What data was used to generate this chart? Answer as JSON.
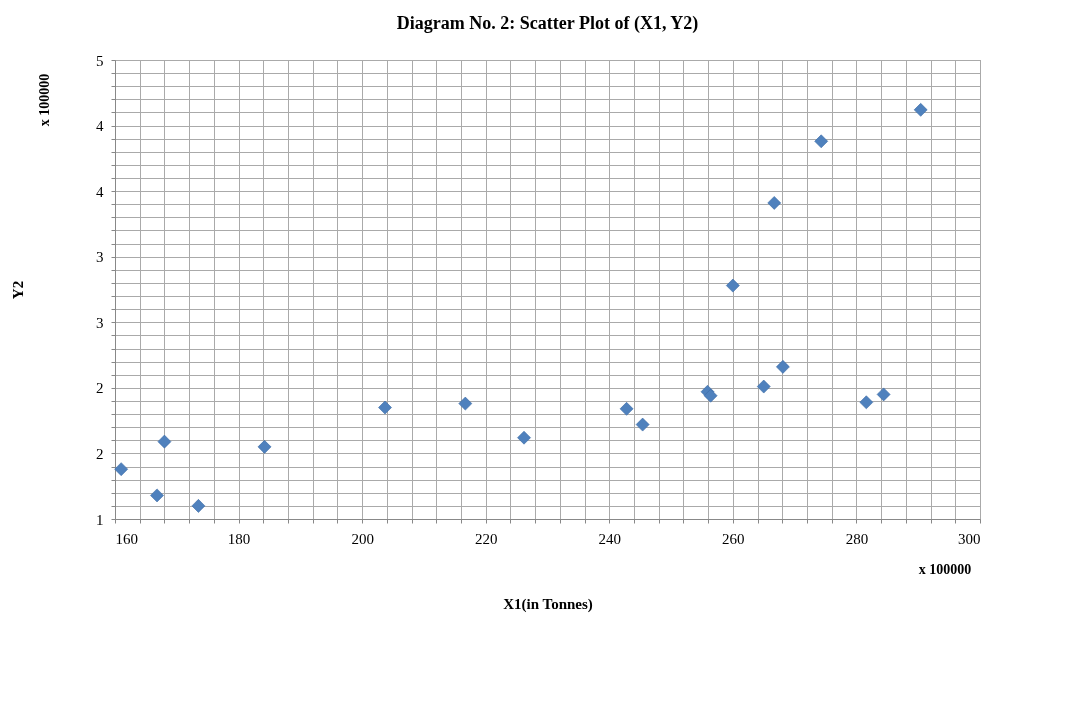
{
  "chart_data": {
    "type": "scatter",
    "title": "Diagram No. 2: Scatter Plot of (X1, Y2)",
    "xlabel": "X1(in Tonnes)",
    "ylabel": "Y2",
    "annotations": [
      "x 100000",
      "x 100000"
    ],
    "marker": "diamond",
    "grid": true,
    "xlim": [
      160,
      300
    ],
    "ylim": [
      1.0,
      4.5
    ],
    "xticks": [
      160,
      {
        "value": 164,
        "label": null
      },
      {
        "value": 168,
        "label": null
      },
      {
        "value": 172,
        "label": null
      },
      {
        "value": 176,
        "label": null
      },
      180,
      {
        "value": 184,
        "label": null
      },
      {
        "value": 188,
        "label": null
      },
      {
        "value": 192,
        "label": null
      },
      {
        "value": 196,
        "label": null
      },
      200,
      {
        "value": 204,
        "label": null
      },
      {
        "value": 208,
        "label": null
      },
      {
        "value": 212,
        "label": null
      },
      {
        "value": 216,
        "label": null
      },
      220,
      {
        "value": 224,
        "label": null
      },
      {
        "value": 228,
        "label": null
      },
      {
        "value": 232,
        "label": null
      },
      {
        "value": 236,
        "label": null
      },
      240,
      {
        "value": 244,
        "label": null
      },
      {
        "value": 248,
        "label": null
      },
      {
        "value": 252,
        "label": null
      },
      {
        "value": 256,
        "label": null
      },
      260,
      {
        "value": 264,
        "label": null
      },
      {
        "value": 268,
        "label": null
      },
      {
        "value": 272,
        "label": null
      },
      {
        "value": 276,
        "label": null
      },
      280,
      {
        "value": 284,
        "label": null
      },
      {
        "value": 288,
        "label": null
      },
      {
        "value": 292,
        "label": null
      },
      {
        "value": 296,
        "label": null
      },
      300
    ],
    "yticks": [
      {
        "value": 1.0,
        "label": "1"
      },
      {
        "value": 1.1,
        "label": null
      },
      {
        "value": 1.2,
        "label": null
      },
      {
        "value": 1.3,
        "label": null
      },
      {
        "value": 1.4,
        "label": null
      },
      {
        "value": 1.5,
        "label": "2"
      },
      {
        "value": 1.6,
        "label": null
      },
      {
        "value": 1.7,
        "label": null
      },
      {
        "value": 1.8,
        "label": null
      },
      {
        "value": 1.9,
        "label": null
      },
      {
        "value": 2.0,
        "label": "2"
      },
      {
        "value": 2.1,
        "label": null
      },
      {
        "value": 2.2,
        "label": null
      },
      {
        "value": 2.3,
        "label": null
      },
      {
        "value": 2.4,
        "label": null
      },
      {
        "value": 2.5,
        "label": "3"
      },
      {
        "value": 2.6,
        "label": null
      },
      {
        "value": 2.7,
        "label": null
      },
      {
        "value": 2.8,
        "label": null
      },
      {
        "value": 2.9,
        "label": null
      },
      {
        "value": 3.0,
        "label": "3"
      },
      {
        "value": 3.1,
        "label": null
      },
      {
        "value": 3.2,
        "label": null
      },
      {
        "value": 3.3,
        "label": null
      },
      {
        "value": 3.4,
        "label": null
      },
      {
        "value": 3.5,
        "label": "4"
      },
      {
        "value": 3.6,
        "label": null
      },
      {
        "value": 3.7,
        "label": null
      },
      {
        "value": 3.8,
        "label": null
      },
      {
        "value": 3.9,
        "label": null
      },
      {
        "value": 4.0,
        "label": "4"
      },
      {
        "value": 4.1,
        "label": null
      },
      {
        "value": 4.2,
        "label": null
      },
      {
        "value": 4.3,
        "label": null
      },
      {
        "value": 4.4,
        "label": null
      },
      {
        "value": 4.5,
        "label": "5"
      }
    ],
    "x": [
      161.0,
      166.8,
      168.0,
      173.5,
      184.2,
      203.7,
      216.7,
      226.2,
      242.8,
      245.4,
      255.9,
      256.4,
      260.0,
      265.0,
      266.7,
      268.1,
      274.3,
      281.6,
      284.4,
      290.4
    ],
    "series": [
      {
        "color": "#4f81bd",
        "values": [
          1.38,
          1.18,
          1.59,
          1.1,
          1.55,
          1.85,
          1.88,
          1.62,
          1.84,
          1.72,
          1.97,
          1.94,
          2.78,
          2.01,
          3.41,
          2.16,
          3.88,
          1.89,
          1.95,
          4.12
        ]
      }
    ]
  }
}
